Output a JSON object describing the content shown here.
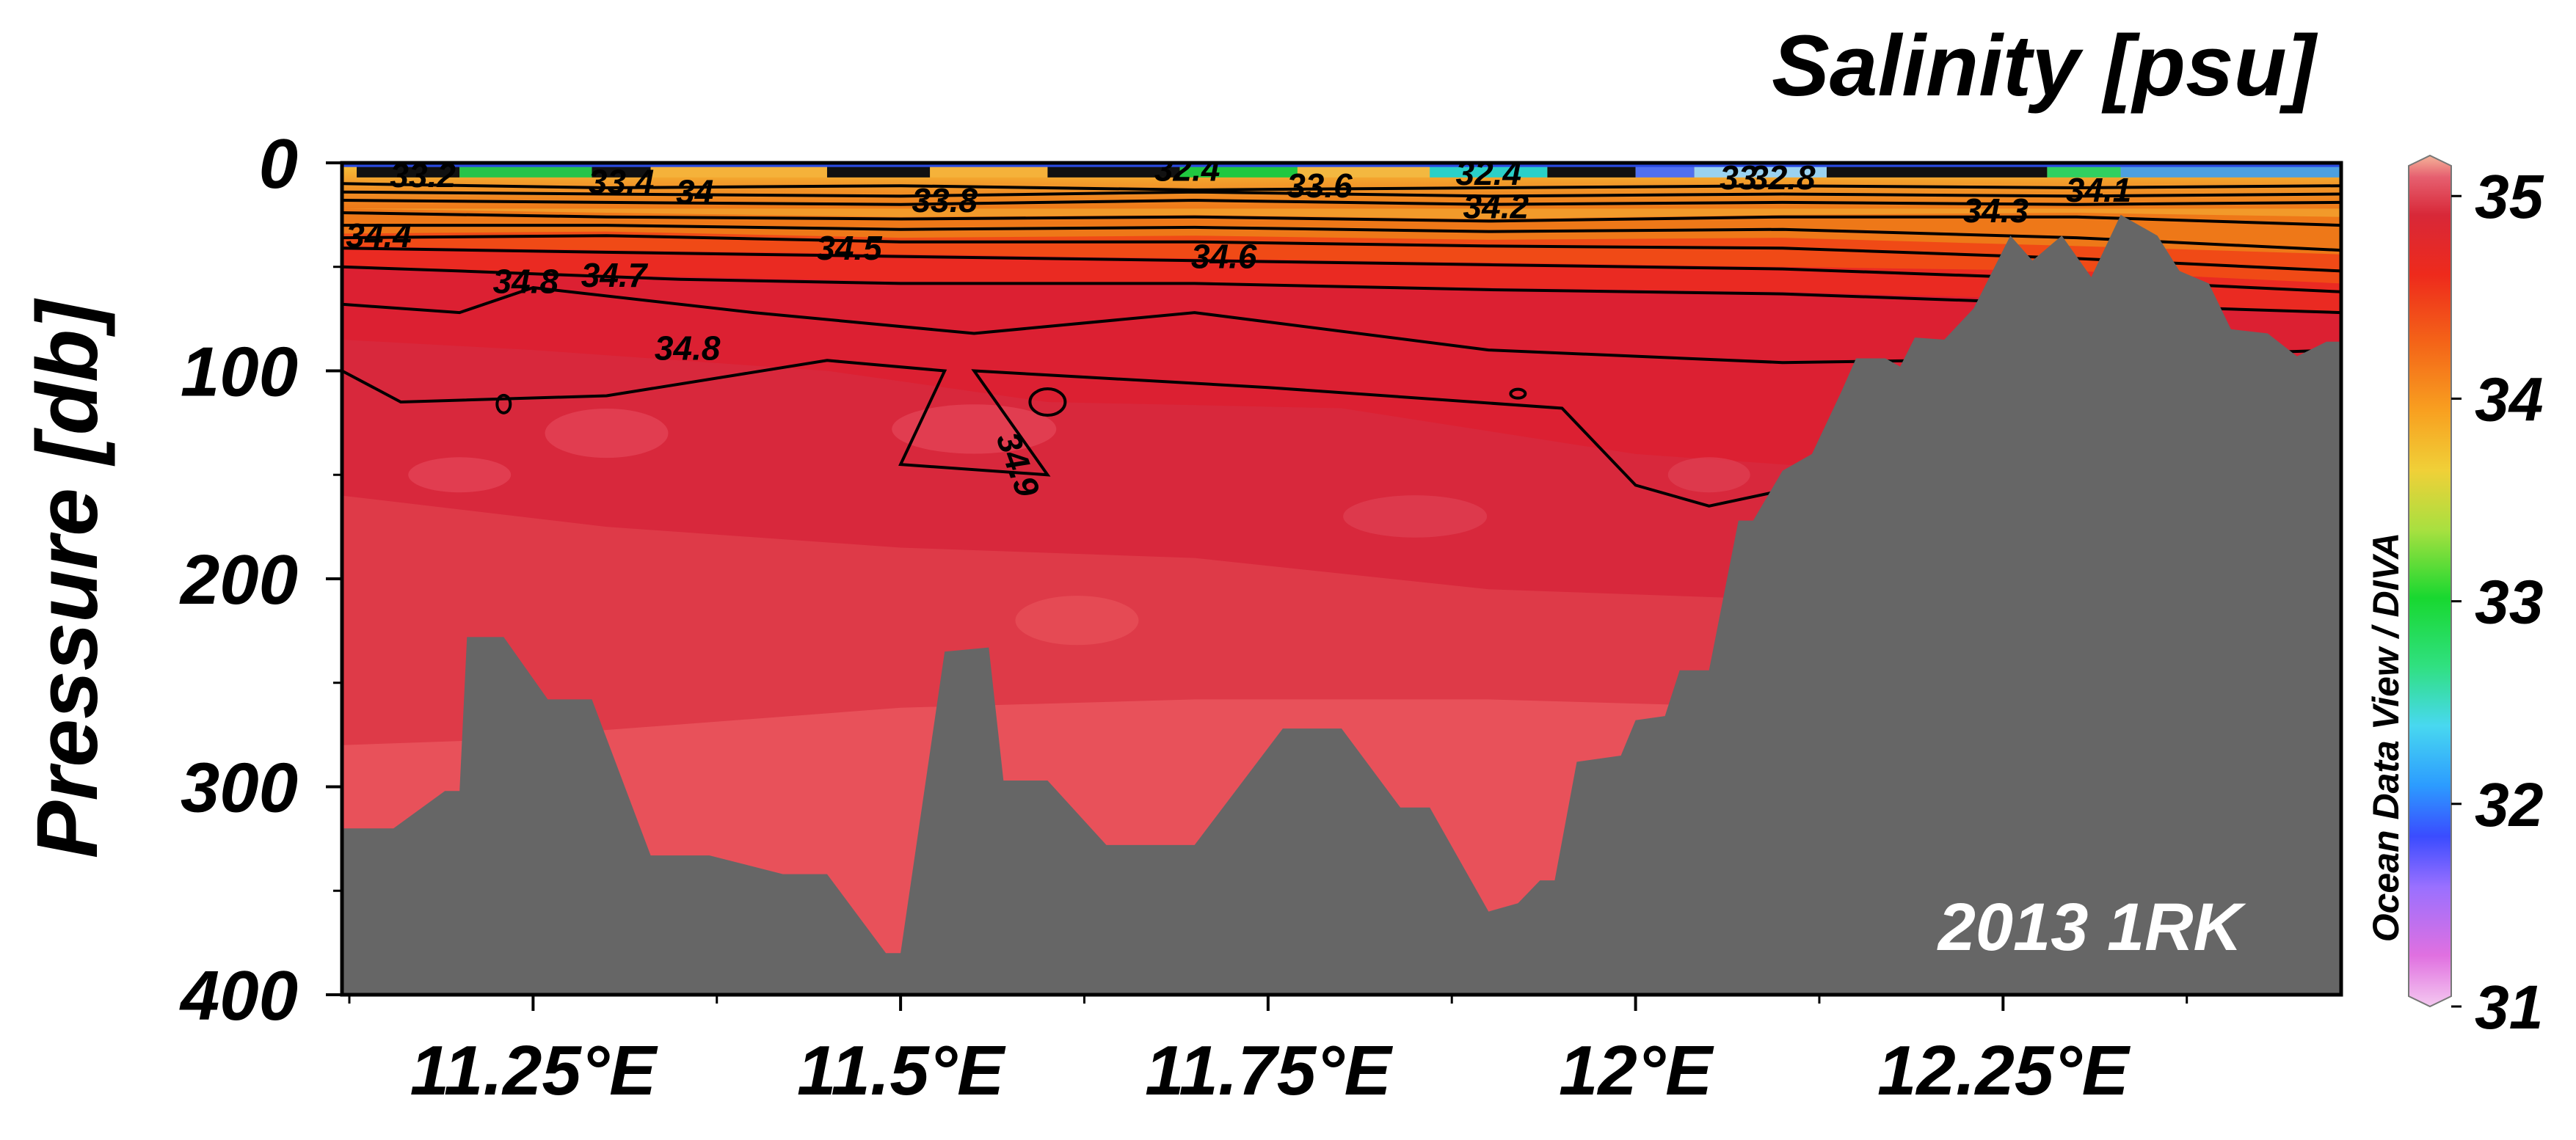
{
  "chart_data": {
    "type": "heatmap",
    "title": "Salinity [psu]",
    "ylabel": "Pressure [db]",
    "xlabel": "",
    "xlim": [
      11.12,
      12.48
    ],
    "ylim": [
      0,
      400
    ],
    "y_inverted": true,
    "x_ticks": [
      {
        "value": 11.25,
        "label": "11.25°E"
      },
      {
        "value": 11.5,
        "label": "11.5°E"
      },
      {
        "value": 11.75,
        "label": "11.75°E"
      },
      {
        "value": 12.0,
        "label": "12°E"
      },
      {
        "value": 12.25,
        "label": "12.25°E"
      }
    ],
    "y_ticks": [
      {
        "value": 0,
        "label": "0"
      },
      {
        "value": 100,
        "label": "100"
      },
      {
        "value": 200,
        "label": "200"
      },
      {
        "value": 300,
        "label": "300"
      },
      {
        "value": 400,
        "label": "400"
      }
    ],
    "colorbar": {
      "range": [
        31,
        35.2
      ],
      "ticks": [
        {
          "value": 31,
          "label": "31"
        },
        {
          "value": 32,
          "label": "32"
        },
        {
          "value": 33,
          "label": "33"
        },
        {
          "value": 34,
          "label": "34"
        },
        {
          "value": 35,
          "label": "35"
        }
      ],
      "side_label": "Ocean Data View / DIVA"
    },
    "annotation": "2013 1RK",
    "colors": {
      "bathymetry": "#666666",
      "fill_35_0": "#e8515a",
      "fill_34_95": "#de3a48",
      "fill_34_9": "#d8283c",
      "fill_34_8": "#dc2032",
      "fill_34_6": "#ea2a22",
      "fill_34_4": "#f04a16",
      "fill_34_2": "#ee7818",
      "fill_surface": "#f29a2a"
    },
    "contour_labels": [
      {
        "text": "33.2",
        "x": 11.175,
        "y": 6,
        "angle": 0
      },
      {
        "text": "33.4",
        "x": 11.31,
        "y": 9,
        "angle": 0
      },
      {
        "text": "34",
        "x": 11.36,
        "y": 14,
        "angle": 0
      },
      {
        "text": "33.8",
        "x": 11.53,
        "y": 18,
        "angle": 0
      },
      {
        "text": "32.4",
        "x": 11.695,
        "y": 3,
        "angle": 0
      },
      {
        "text": "33.6",
        "x": 11.785,
        "y": 11,
        "angle": 0
      },
      {
        "text": "32.4",
        "x": 11.9,
        "y": 5,
        "angle": 0
      },
      {
        "text": "34.2",
        "x": 11.905,
        "y": 21,
        "angle": 0
      },
      {
        "text": "33",
        "x": 12.07,
        "y": 7,
        "angle": 0
      },
      {
        "text": "32.8",
        "x": 12.1,
        "y": 7,
        "angle": 0
      },
      {
        "text": "34.3",
        "x": 12.245,
        "y": 23,
        "angle": 0
      },
      {
        "text": "34.1",
        "x": 12.315,
        "y": 13,
        "angle": 0
      },
      {
        "text": "34.4",
        "x": 11.145,
        "y": 35,
        "angle": 0
      },
      {
        "text": "34.5",
        "x": 11.465,
        "y": 41,
        "angle": 0
      },
      {
        "text": "34.6",
        "x": 11.72,
        "y": 45,
        "angle": 0
      },
      {
        "text": "34.8",
        "x": 11.245,
        "y": 57,
        "angle": 0
      },
      {
        "text": "34.7",
        "x": 11.305,
        "y": 54,
        "angle": 0
      },
      {
        "text": "34.8",
        "x": 11.355,
        "y": 89,
        "angle": 0
      },
      {
        "text": "34.9",
        "x": 11.58,
        "y": 145,
        "angle": 70
      }
    ]
  }
}
